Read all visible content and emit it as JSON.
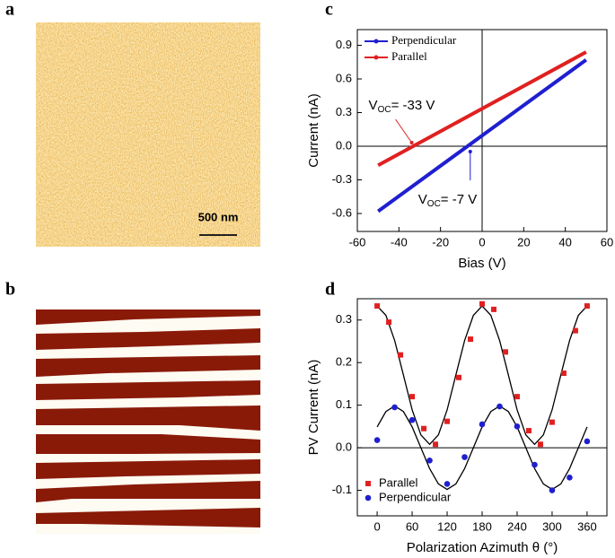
{
  "panels": {
    "a": "a",
    "b": "b",
    "c": "c",
    "d": "d"
  },
  "image_a": {
    "scale_label": "500 nm"
  },
  "chart_data": [
    {
      "type": "line",
      "xlabel": "Bias (V)",
      "ylabel": "Current (nA)",
      "xlim": [
        -60,
        60
      ],
      "xticks": [
        -60,
        -40,
        -20,
        0,
        20,
        40,
        60
      ],
      "ylim": [
        -0.76,
        1.04
      ],
      "yticks": [
        -0.6,
        -0.3,
        {
          "value": 0,
          "label": "0.0"
        },
        0.3,
        0.6,
        0.9
      ],
      "series": [
        {
          "name": "Perpendicular",
          "color": "#1f1fd0",
          "x": [
            -50,
            50
          ],
          "values": [
            -0.58,
            0.77
          ]
        },
        {
          "name": "Parallel",
          "color": "#e02020",
          "x": [
            -50,
            50
          ],
          "values": [
            -0.17,
            0.84
          ]
        }
      ],
      "annotations": [
        {
          "main": "V",
          "sub": "OC",
          "rest": "= -33 V",
          "color": "#e02020",
          "x": -33,
          "y": 0
        },
        {
          "main": "V",
          "sub": "OC",
          "rest": "= -7 V",
          "color": "#1f1fd0",
          "x": -7,
          "y": 0
        }
      ]
    },
    {
      "type": "scatter",
      "xlabel": "Polarization Azimuth θ (°)",
      "ylabel": "PV Current (nA)",
      "xlim": [
        -34,
        394
      ],
      "xticks": [
        0,
        60,
        120,
        180,
        240,
        300,
        360
      ],
      "ylim": [
        -0.16,
        0.35
      ],
      "yticks": [
        -0.1,
        {
          "value": 0,
          "label": "0.0"
        },
        0.1,
        0.2,
        0.3
      ],
      "series": [
        {
          "name": "Parallel",
          "color": "#e02020",
          "marker": "square",
          "x": [
            0,
            20,
            40,
            60,
            80,
            100,
            120,
            140,
            160,
            180,
            200,
            220,
            240,
            260,
            280,
            300,
            320,
            340,
            360
          ],
          "values": [
            0.333,
            0.295,
            0.218,
            0.12,
            0.045,
            0.008,
            0.062,
            0.165,
            0.255,
            0.338,
            0.325,
            0.225,
            0.12,
            0.04,
            0.008,
            0.06,
            0.175,
            0.275,
            0.333
          ]
        },
        {
          "name": "Perpendicular",
          "color": "#1f1fd0",
          "marker": "circle",
          "x": [
            0,
            30,
            60,
            90,
            120,
            150,
            180,
            210,
            240,
            270,
            300,
            330,
            360
          ],
          "values": [
            0.018,
            0.095,
            0.065,
            -0.03,
            -0.085,
            -0.022,
            0.055,
            0.097,
            0.05,
            -0.04,
            -0.1,
            -0.07,
            0.015
          ]
        }
      ],
      "curves": [
        {
          "x": [
            0,
            15,
            30,
            45,
            60,
            75,
            90,
            105,
            120,
            135,
            150,
            165,
            180,
            195,
            210,
            225,
            240,
            255,
            270,
            285,
            300,
            315,
            330,
            345,
            360
          ],
          "values": [
            0.333,
            0.311,
            0.252,
            0.171,
            0.089,
            0.03,
            0.008,
            0.03,
            0.089,
            0.171,
            0.252,
            0.311,
            0.333,
            0.311,
            0.252,
            0.171,
            0.089,
            0.03,
            0.008,
            0.03,
            0.089,
            0.171,
            0.252,
            0.311,
            0.333
          ]
        },
        {
          "x": [
            0,
            15,
            30,
            45,
            60,
            75,
            90,
            105,
            120,
            135,
            150,
            165,
            180,
            195,
            210,
            225,
            240,
            255,
            270,
            285,
            300,
            315,
            330,
            345,
            360
          ],
          "values": [
            0.049,
            0.085,
            0.098,
            0.085,
            0.049,
            0,
            -0.049,
            -0.085,
            -0.098,
            -0.085,
            -0.049,
            0,
            0.049,
            0.085,
            0.098,
            0.085,
            0.049,
            0,
            -0.049,
            -0.085,
            -0.098,
            -0.085,
            -0.049,
            0,
            0.049
          ]
        }
      ]
    }
  ]
}
